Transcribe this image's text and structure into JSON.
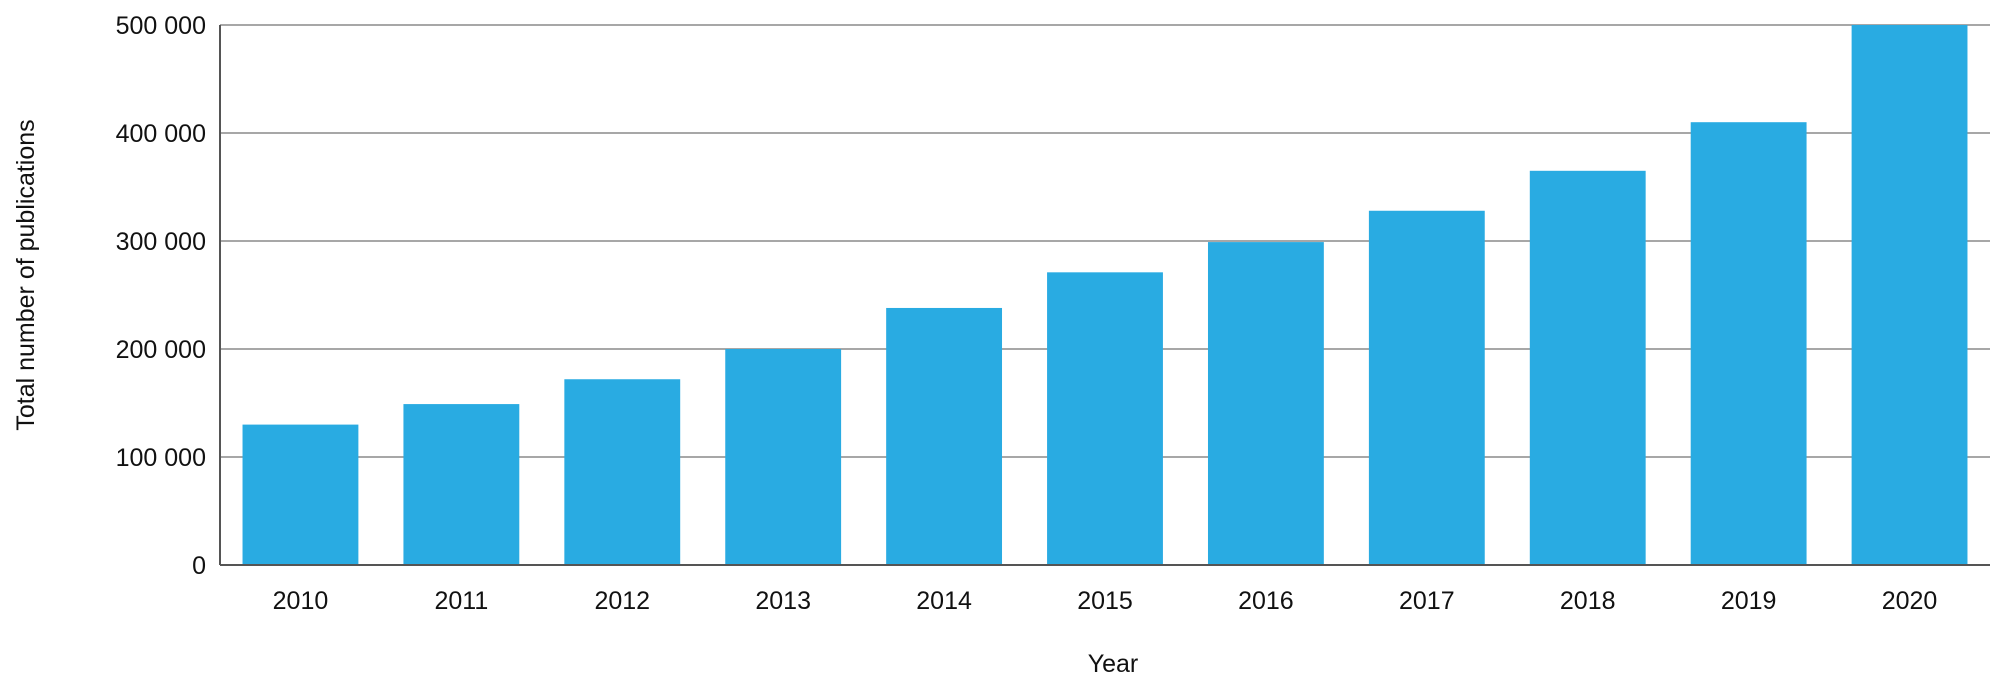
{
  "chart_data": {
    "type": "bar",
    "title": "",
    "xlabel": "Year",
    "ylabel": "Total number of publications",
    "categories": [
      "2010",
      "2011",
      "2012",
      "2013",
      "2014",
      "2015",
      "2016",
      "2017",
      "2018",
      "2019",
      "2020"
    ],
    "values": [
      130000,
      149000,
      172000,
      200000,
      238000,
      271000,
      299000,
      328000,
      365000,
      410000,
      500000
    ],
    "ylim": [
      0,
      500000
    ],
    "yticks": [
      0,
      100000,
      200000,
      300000,
      400000,
      500000
    ],
    "ytick_labels": [
      "0",
      "100 000",
      "200 000",
      "300 000",
      "400 000",
      "500 000"
    ],
    "grid": "horizontal",
    "legend": "none",
    "colors": {
      "bar": "#29abe2",
      "grid": "#8a8a8a",
      "axis": "#555555"
    }
  }
}
